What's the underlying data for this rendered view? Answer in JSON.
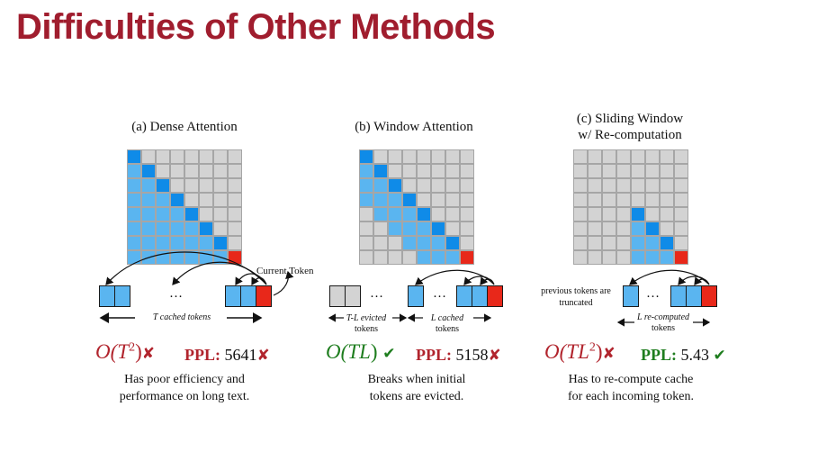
{
  "title": "Difficulties of Other Methods",
  "colors": {
    "title": "#a01d2e",
    "gray": "#d3d3d3",
    "blue": "#5ab5f0",
    "dark_blue": "#0f8be8",
    "red": "#e8281a",
    "bad": "#b1242d",
    "good": "#1e7d1e"
  },
  "panels": [
    {
      "title_line1": "(a) Dense Attention",
      "title_line2": "",
      "token_labels": {
        "left": "T cached tokens",
        "right": ""
      },
      "current_token_label": "Current Token",
      "ellipsis": "…",
      "complexity": {
        "base": "O(",
        "var": "T",
        "sup": "2",
        "close": ")"
      },
      "complexity_mark": "✘",
      "ppl_label": "PPL:",
      "ppl_value": "5641",
      "ppl_mark": "✘",
      "caption_line1": "Has poor efficiency and",
      "caption_line2": "performance on long text."
    },
    {
      "title_line1": "(b) Window Attention",
      "title_line2": "",
      "token_labels": {
        "left": "T-L evicted",
        "left2": "tokens",
        "right": "L cached",
        "right2": "tokens"
      },
      "ellipsis": "…",
      "complexity": {
        "base": "O(",
        "var": "TL",
        "sup": "",
        "close": ")"
      },
      "complexity_mark": "✔",
      "ppl_label": "PPL:",
      "ppl_value": "5158",
      "ppl_mark": "✘",
      "caption_line1": "Breaks when initial",
      "caption_line2": "tokens are evicted."
    },
    {
      "title_line1": "(c) Sliding Window",
      "title_line2": "w/ Re-computation",
      "token_labels": {
        "left": "previous tokens are",
        "left2": "truncated",
        "right": "L re-computed",
        "right2": "tokens"
      },
      "ellipsis": "…",
      "complexity": {
        "base": "O(",
        "var": "TL",
        "sup": "2",
        "close": ")"
      },
      "complexity_mark": "✘",
      "ppl_label": "PPL:",
      "ppl_value": "5.43",
      "ppl_mark": "✔",
      "caption_line1": "Has to re-compute cache",
      "caption_line2": "for each incoming token."
    }
  ]
}
